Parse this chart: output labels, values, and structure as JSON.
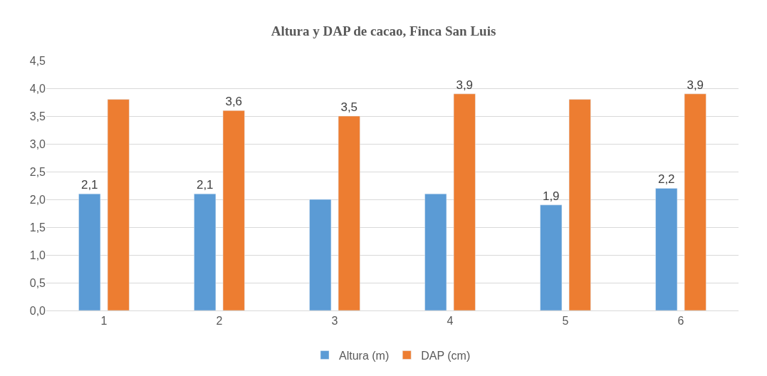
{
  "chart_data": {
    "type": "bar",
    "title": "Altura y DAP de cacao, Finca San Luis",
    "categories": [
      "1",
      "2",
      "3",
      "4",
      "5",
      "6"
    ],
    "series": [
      {
        "name": "Altura (m)",
        "color": "#5b9bd5",
        "values": [
          2.1,
          2.1,
          2.0,
          2.1,
          1.9,
          2.2
        ],
        "value_labels": [
          "2,1",
          "2,1",
          null,
          null,
          "1,9",
          "2,2"
        ]
      },
      {
        "name": "DAP (cm)",
        "color": "#ed7d31",
        "values": [
          3.8,
          3.6,
          3.5,
          3.9,
          3.8,
          3.9
        ],
        "value_labels": [
          null,
          "3,6",
          "3,5",
          "3,9",
          null,
          "3,9"
        ]
      }
    ],
    "ylim": [
      0,
      4.5
    ],
    "yticks": [
      {
        "value": 0,
        "label": "0,0"
      },
      {
        "value": 0.5,
        "label": "0,5"
      },
      {
        "value": 1,
        "label": "1,0"
      },
      {
        "value": 1.5,
        "label": "1,5"
      },
      {
        "value": 2,
        "label": "2,0"
      },
      {
        "value": 2.5,
        "label": "2,5"
      },
      {
        "value": 3,
        "label": "3,0"
      },
      {
        "value": 3.5,
        "label": "3,5"
      },
      {
        "value": 4,
        "label": "4,0"
      },
      {
        "value": 4.5,
        "label": "4,5"
      }
    ],
    "grid": "y",
    "legend": "bottom"
  }
}
